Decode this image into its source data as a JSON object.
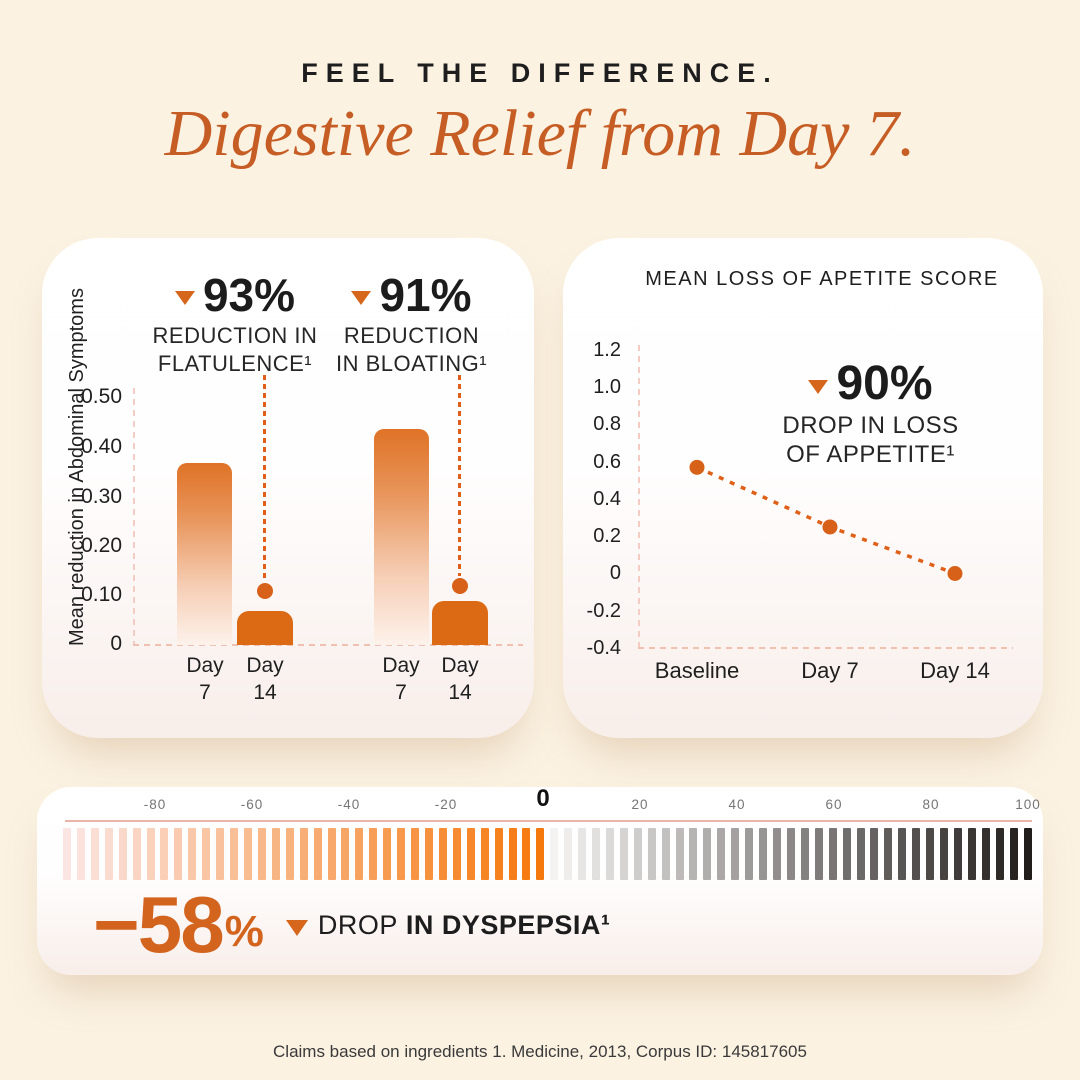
{
  "header": {
    "kicker": "FEEL THE DIFFERENCE.",
    "title": "Digestive Relief from Day 7."
  },
  "colors": {
    "background": "#FBF2E2",
    "accent_orange": "#DC6A14",
    "title_orange": "#C65D24",
    "highlight_orange": "#D2641E",
    "axis_pink": "#F3CDC3",
    "scale_line_pink": "#E9B5A9",
    "text_dark": "#1E1E1E"
  },
  "chart_data": [
    {
      "type": "bar",
      "ylabel": "Mean reduction in Abdominal Symptoms",
      "ylim": [
        0,
        0.5
      ],
      "yticks": [
        0.5,
        0.4,
        0.3,
        0.2,
        0.1,
        0
      ],
      "ytick_labels": [
        "0.50",
        "0.40",
        "0.30",
        "0.20",
        "0.10",
        "0"
      ],
      "categories": [
        "Day 7",
        "Day 14",
        "Day 7",
        "Day 14"
      ],
      "categories_lines": [
        [
          "Day",
          "7"
        ],
        [
          "Day",
          "14"
        ],
        [
          "Day",
          "7"
        ],
        [
          "Day",
          "14"
        ]
      ],
      "values": [
        0.37,
        0.07,
        0.44,
        0.09
      ],
      "grid": false,
      "annotations": [
        {
          "value": "93%",
          "lines": [
            "REDUCTION IN",
            "FLATULENCE¹"
          ],
          "dot_value": 0.11
        },
        {
          "value": "91%",
          "lines": [
            "REDUCTION",
            "IN BLOATING¹"
          ],
          "dot_value": 0.12
        }
      ]
    },
    {
      "type": "line",
      "title": "MEAN LOSS OF APETITE SCORE",
      "x": [
        "Baseline",
        "Day 7",
        "Day 14"
      ],
      "values": [
        0.57,
        0.25,
        0
      ],
      "ylim": [
        -0.4,
        1.2
      ],
      "yticks": [
        1.2,
        1.0,
        0.8,
        0.6,
        0.4,
        0.2,
        0,
        -0.2,
        -0.4
      ],
      "ytick_labels": [
        "1.2",
        "1.0",
        "0.8",
        "0.6",
        "0.4",
        "0.2",
        "0",
        "-0.2",
        "-0.4"
      ],
      "line_style": "dashed",
      "grid": false,
      "annotation": {
        "value": "90%",
        "lines": [
          "DROP IN LOSS",
          "OF APPETITE¹"
        ]
      }
    },
    {
      "type": "bar",
      "variant": "diverging-gradient-scale",
      "axis_range": [
        -100,
        100
      ],
      "ticks": [
        "-80",
        "-60",
        "-40",
        "-20",
        "0",
        "20",
        "40",
        "60",
        "80",
        "100"
      ],
      "bar_count": 70,
      "split_index": 35,
      "negative_colors": [
        "#FBE5E2",
        "#F5780C"
      ],
      "positive_colors": [
        "#F5F3F2",
        "#201D1B"
      ],
      "highlight_value": -58,
      "highlight": {
        "value": "−58",
        "unit": "%",
        "label_regular": "DROP",
        "label_bold": "IN DYSPEPSIA¹"
      }
    }
  ],
  "footer": {
    "text": "Claims based on ingredients 1. Medicine, 2013, Corpus ID: 145817605"
  }
}
